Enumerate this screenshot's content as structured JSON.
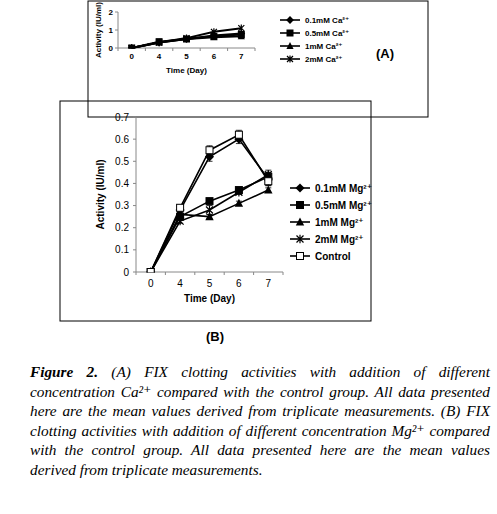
{
  "chart_data": [
    {
      "type": "line",
      "annotations": [
        "(A)"
      ],
      "x_label": "Time (Day)",
      "y_label": "Activity (IU/ml)",
      "categories": [
        "0",
        "4",
        "5",
        "6",
        "7"
      ],
      "ylim": [
        0,
        2
      ],
      "yticks": [
        0,
        1,
        2
      ],
      "grid": false,
      "series": [
        {
          "name": "0.1mM Ca²⁺",
          "color": "#000000",
          "marker": "diamond",
          "values": [
            0,
            0.3,
            0.5,
            0.7,
            0.8
          ]
        },
        {
          "name": "0.5mM Ca²⁺",
          "color": "#000000",
          "marker": "square",
          "values": [
            0,
            0.35,
            0.5,
            0.65,
            0.75
          ]
        },
        {
          "name": "1mM Ca²⁺",
          "color": "#000000",
          "marker": "triangle",
          "values": [
            0,
            0.3,
            0.5,
            0.6,
            0.65
          ]
        },
        {
          "name": "2mM Ca²⁺",
          "color": "#000000",
          "marker": "x",
          "values": [
            0,
            0.3,
            0.55,
            0.9,
            1.1
          ]
        }
      ]
    },
    {
      "type": "line",
      "annotations": [
        "(B)"
      ],
      "x_label": "Time (Day)",
      "y_label": "Activity (IU/ml)",
      "categories": [
        "0",
        "4",
        "5",
        "6",
        "7"
      ],
      "ylim": [
        0,
        0.7
      ],
      "yticks": [
        0,
        0.1,
        0.2,
        0.3,
        0.4,
        0.5,
        0.6,
        0.7
      ],
      "grid": false,
      "series": [
        {
          "name": "0.1mM Mg²⁺",
          "color": "#000000",
          "marker": "diamond",
          "values": [
            0,
            0.28,
            0.52,
            0.6,
            0.42
          ],
          "errors": [
            0,
            0.01,
            0.02,
            0.02,
            0.03
          ]
        },
        {
          "name": "0.5mM Mg²⁺",
          "color": "#000000",
          "marker": "square",
          "values": [
            0,
            0.25,
            0.32,
            0.37,
            0.43
          ],
          "errors": [
            0,
            0.01,
            0.01,
            0.01,
            0.02
          ]
        },
        {
          "name": "1mM Mg²⁺",
          "color": "#000000",
          "marker": "triangle",
          "values": [
            0,
            0.26,
            0.25,
            0.31,
            0.37
          ],
          "errors": [
            0,
            0.01,
            0.01,
            0.01,
            0.01
          ]
        },
        {
          "name": "2mM Mg²⁺",
          "color": "#000000",
          "marker": "x",
          "values": [
            0,
            0.23,
            0.28,
            0.36,
            0.44
          ],
          "errors": [
            0,
            0.01,
            0.02,
            0.01,
            0.02
          ]
        },
        {
          "name": "Control",
          "color": "#000000",
          "marker": "open-square",
          "values": [
            0,
            0.29,
            0.55,
            0.62,
            0.41
          ],
          "errors": [
            0,
            0.01,
            0.02,
            0.02,
            0.02
          ]
        }
      ]
    }
  ],
  "caption": {
    "label": "Figure 2.",
    "text": "(A) FIX clotting activities with addition of different concentration Ca²⁺ compared with the control group. All data presented here are the mean values derived from triplicate measurements. (B) FIX clotting activities with addition of different concentration Mg²⁺ compared with the control group. All data presented here are the mean values derived from triplicate measurements."
  }
}
